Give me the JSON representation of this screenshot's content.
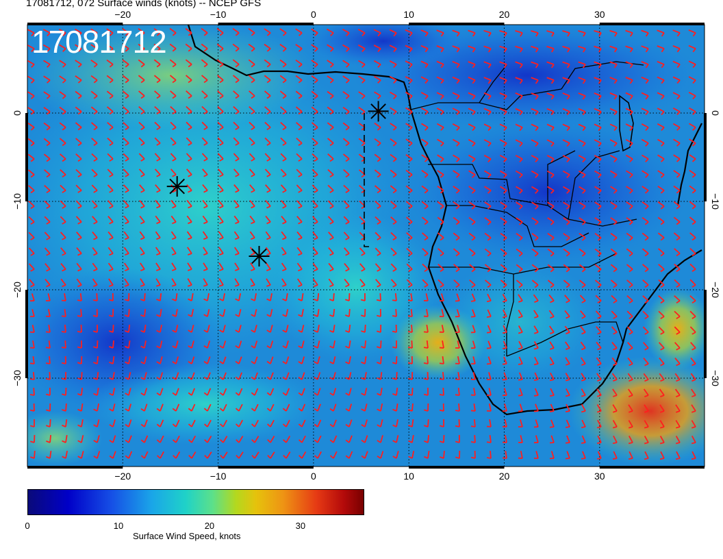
{
  "title": "17081712, 072 Surface winds (knots) -- NCEP GFS",
  "timestamp_stamp": "17081712",
  "map": {
    "lon_range": [
      -30,
      41
    ],
    "lat_range": [
      -40,
      10
    ],
    "lon_ticks": [
      {
        "value": -20,
        "label": "−20"
      },
      {
        "value": -10,
        "label": "−10"
      },
      {
        "value": 0,
        "label": "0"
      },
      {
        "value": 10,
        "label": "10"
      },
      {
        "value": 20,
        "label": "20"
      },
      {
        "value": 30,
        "label": "30"
      }
    ],
    "lat_ticks": [
      {
        "value": 0,
        "label": "0"
      },
      {
        "value": -10,
        "label": "−10"
      },
      {
        "value": -20,
        "label": "−20"
      },
      {
        "value": -30,
        "label": "−30"
      }
    ],
    "grid": true,
    "barb_color": "#ff1e1e",
    "markers": [
      {
        "lon": 6.8,
        "lat": 0.2
      },
      {
        "lon": -14.3,
        "lat": -8.3
      },
      {
        "lon": -5.7,
        "lat": -16.2
      }
    ]
  },
  "colorbar": {
    "label": "Surface Wind Speed, knots",
    "range": [
      0,
      37
    ],
    "ticks": [
      {
        "value": 0,
        "label": "0"
      },
      {
        "value": 10,
        "label": "10"
      },
      {
        "value": 20,
        "label": "20"
      },
      {
        "value": 30,
        "label": "30"
      }
    ]
  }
}
